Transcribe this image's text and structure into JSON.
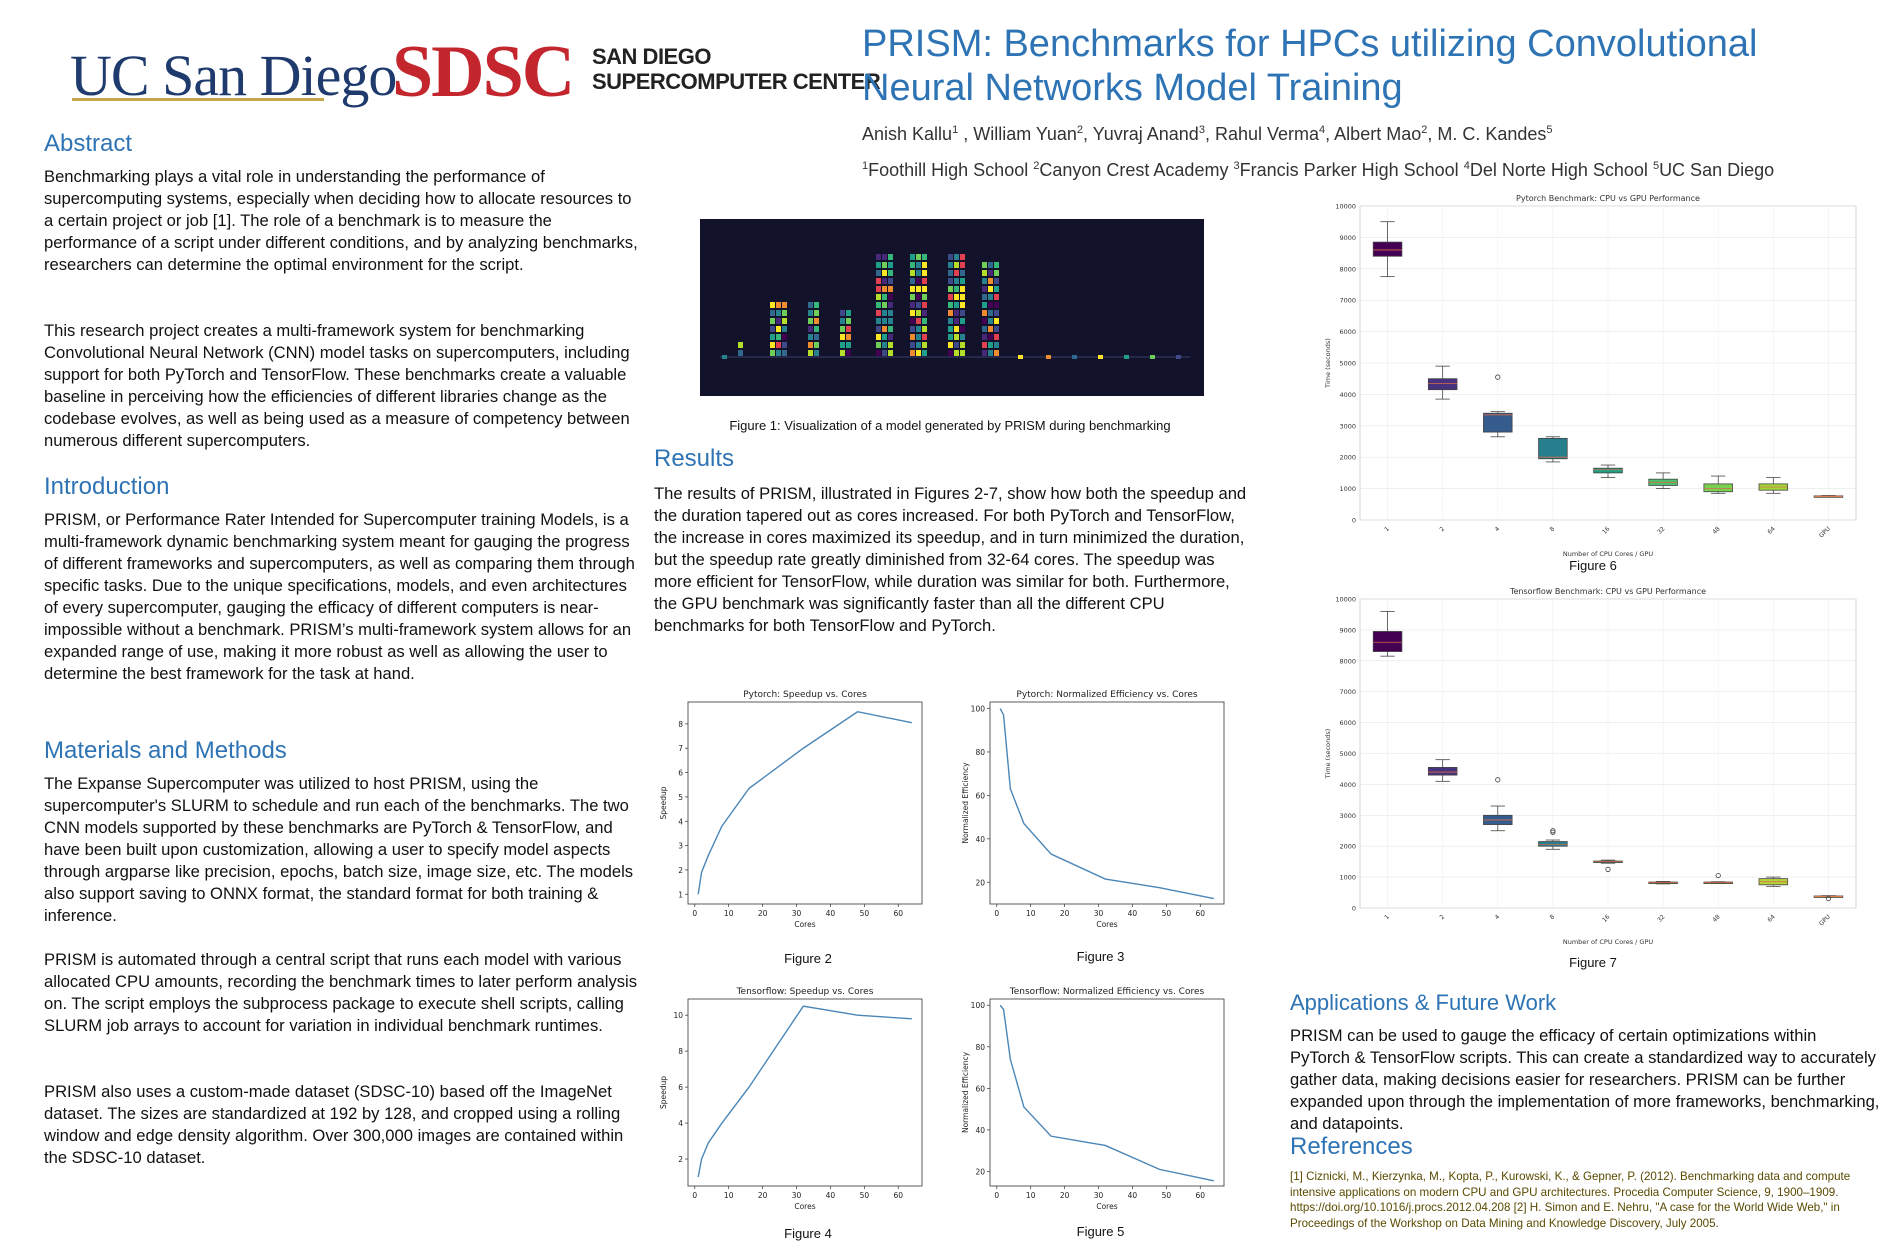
{
  "logos": {
    "ucsd": "UC San Diego",
    "sdsc": "SDSC",
    "sdsc_line1": "SAN DIEGO",
    "sdsc_line2": "SUPERCOMPUTER CENTER"
  },
  "title": "PRISM: Benchmarks for HPCs utilizing Convolutional Neural Networks Model Training",
  "authors": [
    {
      "name": "Anish Kallu",
      "aff": "1"
    },
    {
      "name": "William Yuan",
      "aff": "2"
    },
    {
      "name": "Yuvraj Anand",
      "aff": "3"
    },
    {
      "name": "Rahul Verma",
      "aff": "4"
    },
    {
      "name": "Albert Mao",
      "aff": "2"
    },
    {
      "name": "M. C. Kandes",
      "aff": "5"
    }
  ],
  "affiliations": [
    {
      "num": "1",
      "name": "Foothill High School"
    },
    {
      "num": "2",
      "name": "Canyon Crest Academy"
    },
    {
      "num": "3",
      "name": "Francis Parker High School"
    },
    {
      "num": "4",
      "name": "Del Norte High School"
    },
    {
      "num": "5",
      "name": "UC San Diego"
    }
  ],
  "abstract": {
    "heading": "Abstract",
    "p1": "Benchmarking plays a vital role in understanding the performance of supercomputing systems, especially when deciding how to allocate resources to a certain project or job [1]. The role of a benchmark is to measure the performance of a script under different conditions, and by analyzing benchmarks, researchers can determine the optimal environment for the script.",
    "p2": "This research project creates a multi-framework system for benchmarking Convolutional Neural Network (CNN) model tasks on supercomputers, including support for both PyTorch and TensorFlow. These benchmarks create a valuable baseline in perceiving how the efficiencies of different libraries change as the codebase evolves, as well as being used as a measure of competency between numerous different supercomputers."
  },
  "introduction": {
    "heading": "Introduction",
    "p1": "PRISM, or Performance Rater Intended for Supercomputer training Models, is a multi-framework dynamic benchmarking system meant for gauging the progress of different frameworks and supercomputers, as well as comparing them through specific tasks.  Due to the unique specifications, models, and even architectures of every supercomputer, gauging the efficacy of different computers is near-impossible without a benchmark. PRISM’s multi-framework system allows for an expanded range of use, making it more robust as well as allowing the user to determine the best framework for the task at hand."
  },
  "methods": {
    "heading": "Materials and Methods",
    "p1": "The Expanse Supercomputer was utilized to host PRISM, using the supercomputer's SLURM to schedule and run each of the benchmarks. The two CNN models supported by these benchmarks are PyTorch & TensorFlow, and have been built upon customization, allowing a user to specify model aspects through argparse like precision, epochs, batch size, image size, etc. The models also support saving to ONNX format, the standard format for both training & inference.",
    "p2": "PRISM is automated through a central script that runs each model with various allocated CPU amounts, recording the benchmark times to later perform analysis on. The script employs the subprocess package to execute shell scripts, calling SLURM job arrays to account for variation in individual benchmark runtimes.",
    "p3": "PRISM also uses a custom-made dataset (SDSC-10) based off the ImageNet dataset. The sizes are standardized at 192 by 128, and cropped using a rolling window and edge density algorithm. Over 300,000 images are contained within the SDSC-10 dataset."
  },
  "figure1": {
    "caption": "Figure 1: Visualization of a model generated by PRISM during benchmarking",
    "palette": [
      "#fde725",
      "#b5de2b",
      "#6ece58",
      "#35b779",
      "#1f9e89",
      "#26828e",
      "#31688e",
      "#3e4989",
      "#482878",
      "#440154",
      "#e04050",
      "#f08c30"
    ]
  },
  "results": {
    "heading": "Results",
    "p1": "The results of PRISM, illustrated in Figures 2-7, show how both the speedup and the duration tapered out as cores increased. For both PyTorch and TensorFlow, the increase in cores maximized its speedup, and in turn minimized the duration, but the speedup rate greatly diminished from 32-64 cores. The speedup was more efficient for TensorFlow, while duration was similar for both. Furthermore, the GPU benchmark was significantly faster than all the different CPU benchmarks for both TensorFlow and PyTorch."
  },
  "applications": {
    "heading": "Applications & Future Work",
    "p1": "PRISM can be used to gauge the efficacy of certain optimizations within PyTorch & TensorFlow scripts. This can create a standardized way to accurately gather data, making decisions easier for researchers. PRISM can be further expanded upon through the implementation of more frameworks, benchmarking, and datapoints."
  },
  "references": {
    "heading": "References",
    "text": "[1] Ciznicki, M., Kierzynka, M., Kopta, P., Kurowski, K., & Gepner, P. (2012). Benchmarking data and compute intensive applications on modern CPU and GPU architectures. Procedia Computer Science, 9, 1900–1909. https://doi.org/10.1016/j.procs.2012.04.208 [2] H. Simon and E. Nehru, \"A case for the World Wide Web,\" in Proceedings of the Workshop on Data Mining and Knowledge Discovery, July 2005."
  },
  "figure_labels": {
    "fig2": "Figure 2",
    "fig3": "Figure 3",
    "fig4": "Figure 4",
    "fig5": "Figure 5",
    "fig6": "Figure 6",
    "fig7": "Figure 7"
  },
  "chart_data": [
    {
      "id": "fig2",
      "type": "line",
      "title": "Pytorch: Speedup vs. Cores",
      "xlabel": "Cores",
      "ylabel": "Speedup",
      "x": [
        1,
        2,
        4,
        8,
        16,
        32,
        48,
        64
      ],
      "y": [
        1.0,
        1.9,
        2.6,
        3.8,
        5.35,
        7.0,
        8.5,
        8.05
      ],
      "xlim": [
        -2,
        67
      ],
      "ylim": [
        0.6,
        8.9
      ],
      "xticks": [
        0,
        10,
        20,
        30,
        40,
        50,
        60
      ],
      "yticks": [
        1,
        2,
        3,
        4,
        5,
        6,
        7,
        8
      ],
      "color": "#4a86b8"
    },
    {
      "id": "fig3",
      "type": "line",
      "title": "Pytorch: Normalized Efficiency vs. Cores",
      "xlabel": "Cores",
      "ylabel": "Normalized Efficiency",
      "x": [
        1,
        2,
        4,
        8,
        16,
        32,
        48,
        64
      ],
      "y": [
        100,
        97,
        63,
        47,
        33,
        21.5,
        17.5,
        12.5
      ],
      "xlim": [
        -2,
        67
      ],
      "ylim": [
        10,
        103
      ],
      "xticks": [
        0,
        10,
        20,
        30,
        40,
        50,
        60
      ],
      "yticks": [
        20,
        40,
        60,
        80,
        100
      ],
      "color": "#4a86b8"
    },
    {
      "id": "fig4",
      "type": "line",
      "title": "Tensorflow: Speedup vs. Cores",
      "xlabel": "Cores",
      "ylabel": "Speedup",
      "x": [
        1,
        2,
        4,
        8,
        16,
        32,
        48,
        64
      ],
      "y": [
        1.0,
        2.0,
        2.9,
        4.0,
        6.0,
        10.5,
        10.0,
        9.8
      ],
      "xlim": [
        -2,
        67
      ],
      "ylim": [
        0.5,
        10.9
      ],
      "xticks": [
        0,
        10,
        20,
        30,
        40,
        50,
        60
      ],
      "yticks": [
        2,
        4,
        6,
        8,
        10
      ],
      "color": "#4a86b8"
    },
    {
      "id": "fig5",
      "type": "line",
      "title": "Tensorflow: Normalized Efficiency vs. Cores",
      "xlabel": "Cores",
      "ylabel": "Normalized Efficiency",
      "x": [
        1,
        2,
        4,
        8,
        16,
        32,
        48,
        64
      ],
      "y": [
        100,
        98,
        74,
        51,
        37,
        32.5,
        21,
        15.5
      ],
      "xlim": [
        -2,
        67
      ],
      "ylim": [
        13,
        103
      ],
      "xticks": [
        0,
        10,
        20,
        30,
        40,
        50,
        60
      ],
      "yticks": [
        20,
        40,
        60,
        80,
        100
      ],
      "color": "#4a86b8"
    },
    {
      "id": "fig6",
      "type": "box",
      "title": "Pytorch Benchmark: CPU vs GPU Performance",
      "xlabel": "Number of CPU Cores / GPU",
      "ylabel": "Time (seconds)",
      "categories": [
        "1",
        "2",
        "4",
        "8",
        "16",
        "32",
        "48",
        "64",
        "GPU"
      ],
      "ylim": [
        0,
        10000
      ],
      "yticks": [
        0,
        1000,
        2000,
        3000,
        4000,
        5000,
        6000,
        7000,
        8000,
        9000,
        10000
      ],
      "grid": true,
      "boxes": [
        {
          "min": 7750,
          "q1": 8400,
          "med": 8600,
          "q3": 8850,
          "max": 9500,
          "outliers": [],
          "color": "#440154"
        },
        {
          "min": 3850,
          "q1": 4150,
          "med": 4350,
          "q3": 4500,
          "max": 4900,
          "outliers": [],
          "color": "#46327e"
        },
        {
          "min": 2650,
          "q1": 2800,
          "med": 3350,
          "q3": 3400,
          "max": 3450,
          "outliers": [
            4550
          ],
          "color": "#365c8d"
        },
        {
          "min": 1850,
          "q1": 1950,
          "med": 2000,
          "q3": 2600,
          "max": 2650,
          "outliers": [],
          "color": "#277f8e"
        },
        {
          "min": 1350,
          "q1": 1500,
          "med": 1600,
          "q3": 1650,
          "max": 1750,
          "outliers": [],
          "color": "#1fa187"
        },
        {
          "min": 1000,
          "q1": 1100,
          "med": 1200,
          "q3": 1300,
          "max": 1500,
          "outliers": [],
          "color": "#4ac16d"
        },
        {
          "min": 850,
          "q1": 900,
          "med": 1000,
          "q3": 1150,
          "max": 1400,
          "outliers": [],
          "color": "#7ad151"
        },
        {
          "min": 850,
          "q1": 950,
          "med": 1050,
          "q3": 1150,
          "max": 1350,
          "outliers": [],
          "color": "#a0da39"
        },
        {
          "min": 740,
          "q1": 750,
          "med": 760,
          "q3": 770,
          "max": 780,
          "outliers": [],
          "color": "#f0a050"
        }
      ]
    },
    {
      "id": "fig7",
      "type": "box",
      "title": "Tensorflow Benchmark: CPU vs GPU Performance",
      "xlabel": "Number of CPU Cores / GPU",
      "ylabel": "Time (seconds)",
      "categories": [
        "1",
        "2",
        "4",
        "8",
        "16",
        "32",
        "48",
        "64",
        "GPU"
      ],
      "ylim": [
        0,
        10000
      ],
      "yticks": [
        0,
        1000,
        2000,
        3000,
        4000,
        5000,
        6000,
        7000,
        8000,
        9000,
        10000
      ],
      "grid": true,
      "boxes": [
        {
          "min": 8150,
          "q1": 8300,
          "med": 8600,
          "q3": 8950,
          "max": 9600,
          "outliers": [],
          "color": "#440154"
        },
        {
          "min": 4100,
          "q1": 4300,
          "med": 4400,
          "q3": 4550,
          "max": 4800,
          "outliers": [],
          "color": "#46327e"
        },
        {
          "min": 2500,
          "q1": 2700,
          "med": 2850,
          "q3": 3000,
          "max": 3300,
          "outliers": [
            4150
          ],
          "color": "#365c8d"
        },
        {
          "min": 1900,
          "q1": 2000,
          "med": 2050,
          "q3": 2150,
          "max": 2200,
          "outliers": [
            2450,
            2500
          ],
          "color": "#277f8e"
        },
        {
          "min": 1450,
          "q1": 1480,
          "med": 1500,
          "q3": 1520,
          "max": 1550,
          "outliers": [
            1250
          ],
          "color": "#3a9a5f"
        },
        {
          "min": 780,
          "q1": 800,
          "med": 820,
          "q3": 840,
          "max": 860,
          "outliers": [],
          "color": "#8aa030"
        },
        {
          "min": 790,
          "q1": 800,
          "med": 820,
          "q3": 840,
          "max": 850,
          "outliers": [
            1050
          ],
          "color": "#9aaa3a"
        },
        {
          "min": 700,
          "q1": 750,
          "med": 850,
          "q3": 950,
          "max": 1000,
          "outliers": [],
          "color": "#b5d43a"
        },
        {
          "min": 350,
          "q1": 370,
          "med": 380,
          "q3": 390,
          "max": 400,
          "outliers": [
            310
          ],
          "color": "#f0a050"
        }
      ]
    }
  ]
}
